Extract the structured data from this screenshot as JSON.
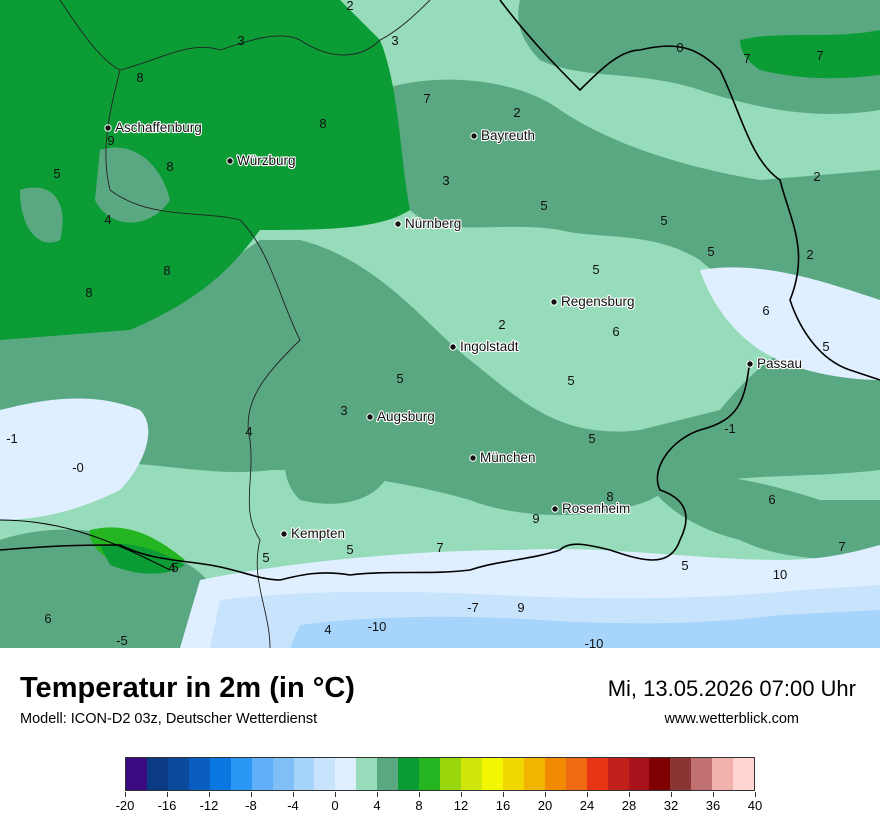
{
  "map": {
    "cities": [
      {
        "name": "Aschaffenburg"
      },
      {
        "name": "Würzburg"
      },
      {
        "name": "Bayreuth"
      },
      {
        "name": "Nürnberg"
      },
      {
        "name": "Regensburg"
      },
      {
        "name": "Ingolstadt"
      },
      {
        "name": "Passau"
      },
      {
        "name": "Augsburg"
      },
      {
        "name": "München"
      },
      {
        "name": "Rosenheim"
      },
      {
        "name": "Kempten"
      }
    ],
    "contour_labels": [
      "2",
      "3",
      "0",
      "7",
      "7",
      "3",
      "8",
      "8",
      "9",
      "8",
      "5",
      "4",
      "8",
      "8",
      "7",
      "2",
      "3",
      "5",
      "5",
      "5",
      "2",
      "5",
      "2",
      "6",
      "2",
      "6",
      "5",
      "3",
      "-1",
      "4",
      "-0",
      "5",
      "5",
      "5",
      "-1",
      "6",
      "8",
      "9",
      "7",
      "5",
      "5",
      "7",
      "10",
      "6",
      "-5",
      "-7",
      "9",
      "-10",
      "4",
      "5",
      "5",
      "4",
      "-10"
    ],
    "field_classes": [
      "2-4 °C",
      "4-6 °C",
      "6-8 °C",
      "8-10 °C",
      "0-2 °C"
    ]
  },
  "footer": {
    "title": "Temperatur in 2m (in °C)",
    "model": "Modell: ICON-D2 03z, Deutscher Wetterdienst",
    "datetime": "Mi, 13.05.2026 07:00 Uhr",
    "website": "www.wetterblick.com"
  },
  "legend": {
    "min": -20,
    "max": 40,
    "tick_labels": [
      "-20",
      "-16",
      "-12",
      "-8",
      "-4",
      "0",
      "4",
      "8",
      "12",
      "16",
      "20",
      "24",
      "28",
      "32",
      "36",
      "40"
    ],
    "colors": [
      "#3a0a82",
      "#0b3b82",
      "#0a4a9a",
      "#0a5ec0",
      "#0a78e0",
      "#2a96f5",
      "#5fb0f8",
      "#80bef8",
      "#a6d4fb",
      "#c8e4fd",
      "#dfefff",
      "#97dcba",
      "#5aa882",
      "#0c9c36",
      "#25b520",
      "#9ad60c",
      "#cfe60a",
      "#f2f600",
      "#f1d800",
      "#f3b400",
      "#f18a00",
      "#ef6a10",
      "#e73412",
      "#c2201b",
      "#a8121b",
      "#7e0000",
      "#8b3434",
      "#c07070",
      "#f0b0ac",
      "#ffd4d2"
    ]
  }
}
